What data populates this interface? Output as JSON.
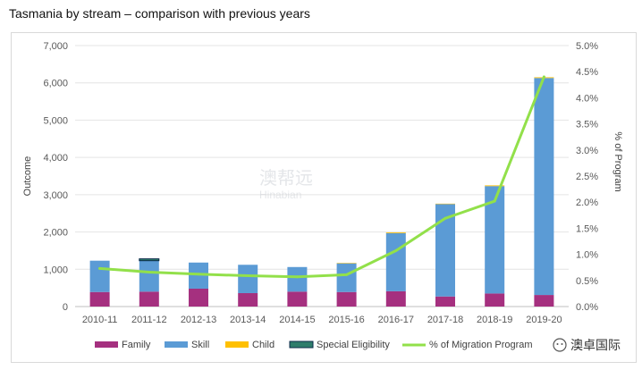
{
  "title": "Tasmania by stream – comparison with previous years",
  "watermark": {
    "cn": "澳帮远",
    "en": "Hinabian"
  },
  "logo": {
    "text": "澳卓国际"
  },
  "chart_data": {
    "type": "bar",
    "stacked": true,
    "categories": [
      "2010-11",
      "2011-12",
      "2012-13",
      "2013-14",
      "2014-15",
      "2015-16",
      "2016-17",
      "2017-18",
      "2018-19",
      "2019-20"
    ],
    "series": [
      {
        "name": "Family",
        "color": "#a5307f",
        "values": [
          390,
          400,
          480,
          360,
          400,
          390,
          410,
          270,
          350,
          310
        ]
      },
      {
        "name": "Skill",
        "color": "#5b9bd5",
        "values": [
          840,
          830,
          700,
          760,
          660,
          770,
          1560,
          2480,
          2880,
          5820
        ]
      },
      {
        "name": "Child",
        "color": "#ffc000",
        "values": [
          0,
          0,
          0,
          0,
          0,
          10,
          20,
          10,
          20,
          20
        ]
      },
      {
        "name": "Special Eligibility",
        "color": "#2e7d6b",
        "values": [
          0,
          50,
          0,
          0,
          0,
          0,
          0,
          0,
          0,
          0
        ]
      }
    ],
    "line": {
      "name": "% of Migration Program",
      "color": "#92e04a",
      "axis": "right",
      "values": [
        0.73,
        0.66,
        0.62,
        0.59,
        0.57,
        0.61,
        1.07,
        1.69,
        2.02,
        4.4
      ]
    },
    "yleft": {
      "label": "Outcome",
      "ylim": [
        0,
        7000
      ],
      "ticks": [
        0,
        1000,
        2000,
        3000,
        4000,
        5000,
        6000,
        7000
      ],
      "tick_labels": [
        "0",
        "1,000",
        "2,000",
        "3,000",
        "4,000",
        "5,000",
        "6,000",
        "7,000"
      ]
    },
    "yright": {
      "label": "% of Program",
      "ylim": [
        0,
        5
      ],
      "ticks": [
        0,
        0.5,
        1,
        1.5,
        2,
        2.5,
        3,
        3.5,
        4,
        4.5,
        5
      ],
      "tick_labels": [
        "0.0%",
        "0.5%",
        "1.0%",
        "1.5%",
        "2.0%",
        "2.5%",
        "3.0%",
        "3.5%",
        "4.0%",
        "4.5%",
        "5.0%"
      ]
    },
    "legend": {
      "position": "bottom",
      "items": [
        "Family",
        "Skill",
        "Child",
        "Special Eligibility",
        "% of Migration Program"
      ]
    }
  }
}
